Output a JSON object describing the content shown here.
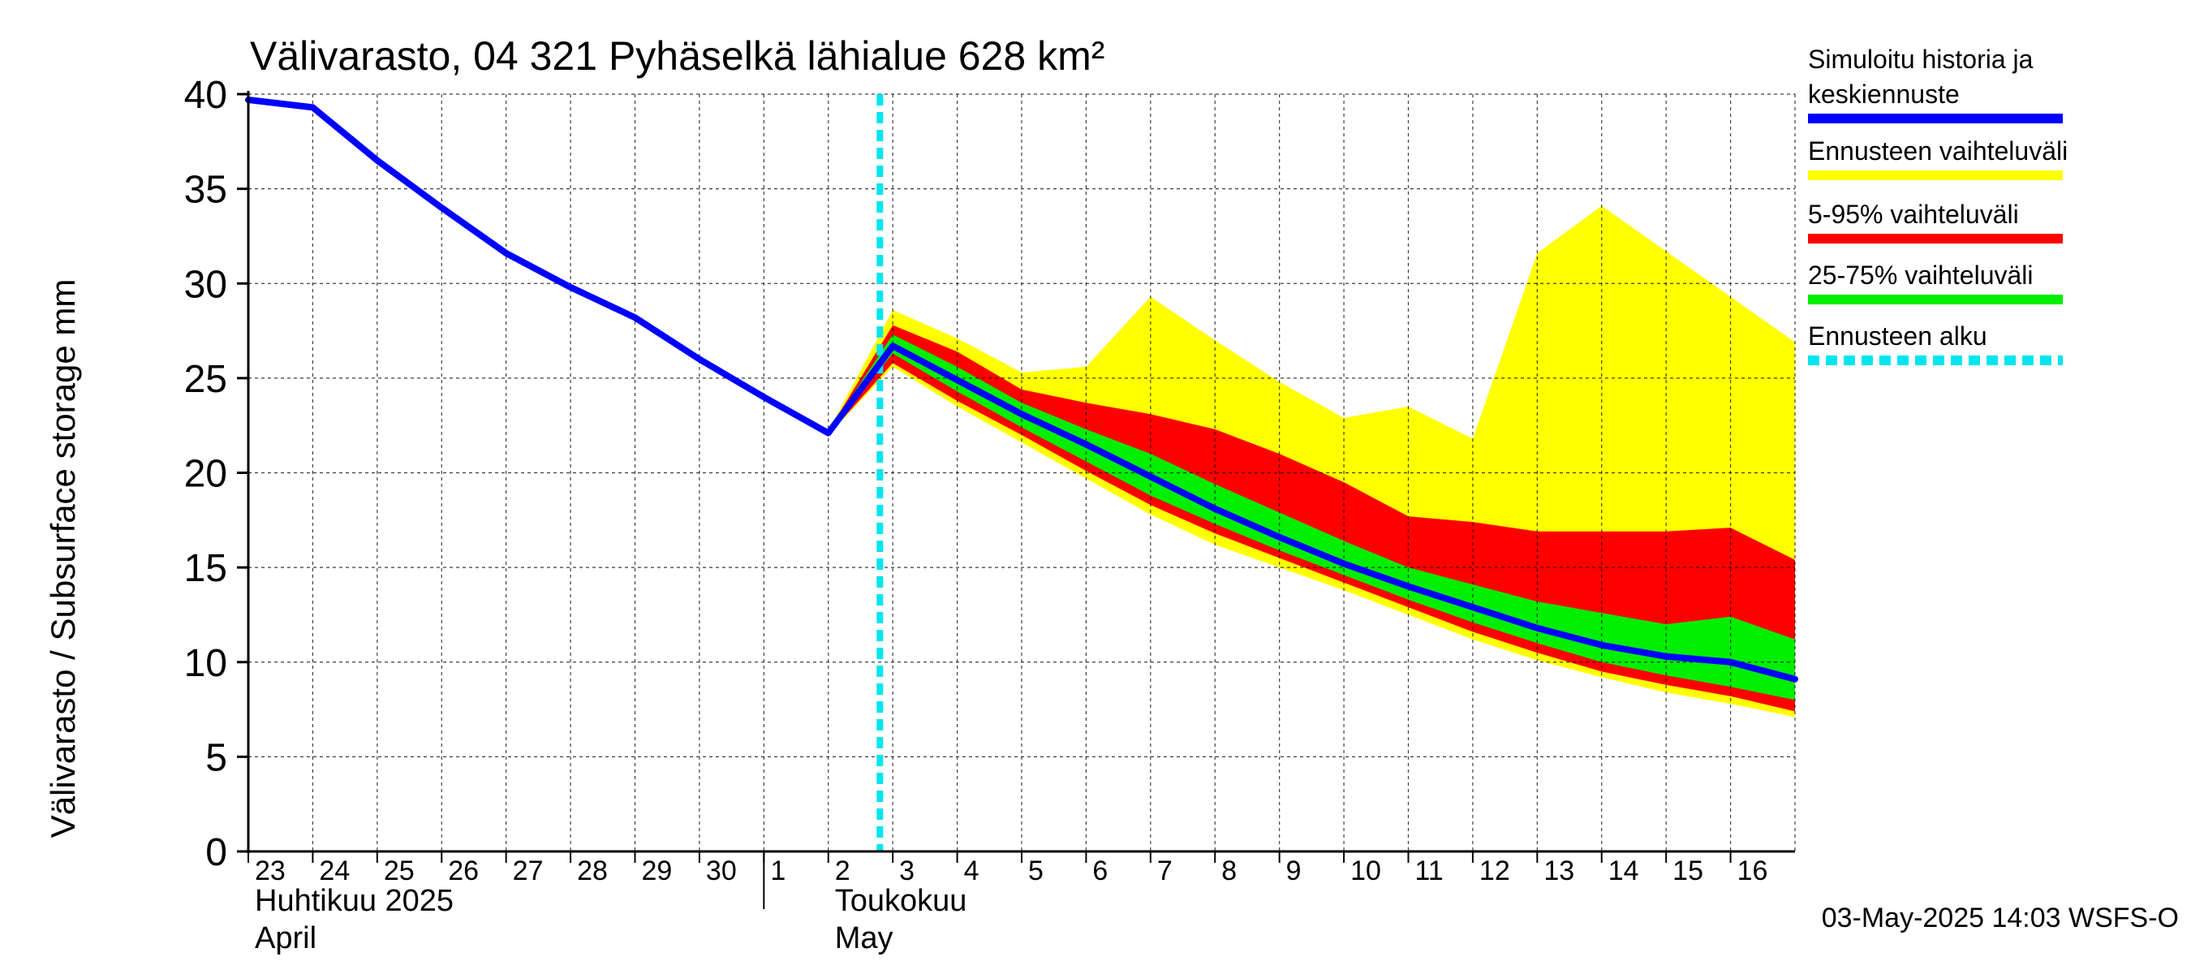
{
  "chart_data": {
    "type": "area",
    "title": "Välivarasto, 04 321 Pyhäselkä lähialue 628 km²",
    "ylabel": "Välivarasto / Subsurface storage  mm",
    "ylim": [
      0,
      40
    ],
    "yticks": [
      0,
      5,
      10,
      15,
      20,
      25,
      30,
      35,
      40
    ],
    "grid": true,
    "x_dates": [
      "2025-04-23",
      "2025-04-24",
      "2025-04-25",
      "2025-04-26",
      "2025-04-27",
      "2025-04-28",
      "2025-04-29",
      "2025-04-30",
      "2025-05-01",
      "2025-05-02",
      "2025-05-03",
      "2025-05-04",
      "2025-05-05",
      "2025-05-06",
      "2025-05-07",
      "2025-05-08",
      "2025-05-09",
      "2025-05-10",
      "2025-05-11",
      "2025-05-12",
      "2025-05-13",
      "2025-05-14",
      "2025-05-15",
      "2025-05-16",
      "2025-05-17"
    ],
    "day_labels": [
      "23",
      "24",
      "25",
      "26",
      "27",
      "28",
      "29",
      "30",
      "1",
      "2",
      "3",
      "4",
      "5",
      "6",
      "7",
      "8",
      "9",
      "10",
      "11",
      "12",
      "13",
      "14",
      "15",
      "16"
    ],
    "month_labels": [
      {
        "line1": "Huhtikuu  2025",
        "line2": "April",
        "start_date": "2025-04-23"
      },
      {
        "line1": "Toukokuu",
        "line2": "May",
        "start_date": "2025-05-02"
      }
    ],
    "month_boundary_date": "2025-05-01",
    "forecast_start_date": "2025-05-02.8",
    "history": {
      "name": "Simuloitu historia ja keskiennuste",
      "x": [
        "2025-04-23",
        "2025-04-24",
        "2025-04-25",
        "2025-04-26",
        "2025-04-27",
        "2025-04-28",
        "2025-04-29",
        "2025-04-30",
        "2025-05-01",
        "2025-05-02"
      ],
      "values": [
        39.7,
        39.3,
        36.5,
        34.0,
        31.6,
        29.8,
        28.2,
        26.0,
        24.0,
        22.1
      ]
    },
    "forecast_x": [
      "2025-05-02",
      "2025-05-03",
      "2025-05-04",
      "2025-05-05",
      "2025-05-06",
      "2025-05-07",
      "2025-05-08",
      "2025-05-09",
      "2025-05-10",
      "2025-05-11",
      "2025-05-12",
      "2025-05-13",
      "2025-05-14",
      "2025-05-15",
      "2025-05-16",
      "2025-05-17"
    ],
    "series": [
      {
        "name": "Ennusteen vaihteluväli",
        "color": "#ffff00",
        "upper": [
          22.2,
          28.6,
          27.1,
          25.3,
          25.6,
          29.3,
          27.0,
          24.8,
          22.9,
          23.5,
          21.8,
          31.6,
          34.1,
          31.7,
          29.3,
          26.9
        ],
        "lower": [
          22.0,
          25.6,
          23.5,
          21.6,
          19.7,
          17.8,
          16.2,
          15.0,
          13.8,
          12.5,
          11.2,
          10.1,
          9.2,
          8.4,
          7.8,
          7.1
        ]
      },
      {
        "name": "5-95% vaihteluväli",
        "color": "#ff0000",
        "upper": [
          22.2,
          27.8,
          26.4,
          24.4,
          23.7,
          23.1,
          22.3,
          21.0,
          19.5,
          17.7,
          17.4,
          16.9,
          16.9,
          16.9,
          17.1,
          15.4
        ],
        "lower": [
          22.0,
          25.8,
          23.8,
          22.0,
          20.1,
          18.3,
          16.8,
          15.5,
          14.2,
          12.9,
          11.6,
          10.5,
          9.5,
          8.8,
          8.2,
          7.4
        ]
      },
      {
        "name": "25-75% vaihteluväli",
        "color": "#00ee00",
        "upper": [
          22.2,
          27.3,
          25.6,
          23.7,
          22.3,
          21.0,
          19.4,
          17.9,
          16.4,
          15.0,
          14.1,
          13.2,
          12.6,
          12.0,
          12.4,
          11.2
        ],
        "lower": [
          22.1,
          26.3,
          24.3,
          22.4,
          20.6,
          18.8,
          17.3,
          15.9,
          14.6,
          13.3,
          12.1,
          11.0,
          10.0,
          9.3,
          8.7,
          8.0
        ]
      },
      {
        "name": "Simuloitu historia ja keskiennuste",
        "color": "#0000ff",
        "values": [
          22.1,
          26.7,
          24.9,
          23.1,
          21.5,
          19.8,
          18.1,
          16.6,
          15.2,
          14.0,
          12.9,
          11.8,
          10.9,
          10.3,
          10.0,
          9.1
        ]
      }
    ],
    "legend": [
      {
        "line1": "Simuloitu historia ja",
        "line2": "keskiennuste",
        "color": "#0000ff",
        "style": "solid"
      },
      {
        "line1": "Ennusteen vaihteluväli",
        "line2": "",
        "color": "#ffff00",
        "style": "solid"
      },
      {
        "line1": "5-95% vaihteluväli",
        "line2": "",
        "color": "#ff0000",
        "style": "solid"
      },
      {
        "line1": "25-75% vaihteluväli",
        "line2": "",
        "color": "#00ee00",
        "style": "solid"
      },
      {
        "line1": "Ennusteen alku",
        "line2": "",
        "color": "#00e5ee",
        "style": "dashed"
      }
    ],
    "legend_placement": "right",
    "footer": "03-May-2025 14:03 WSFS-O"
  }
}
